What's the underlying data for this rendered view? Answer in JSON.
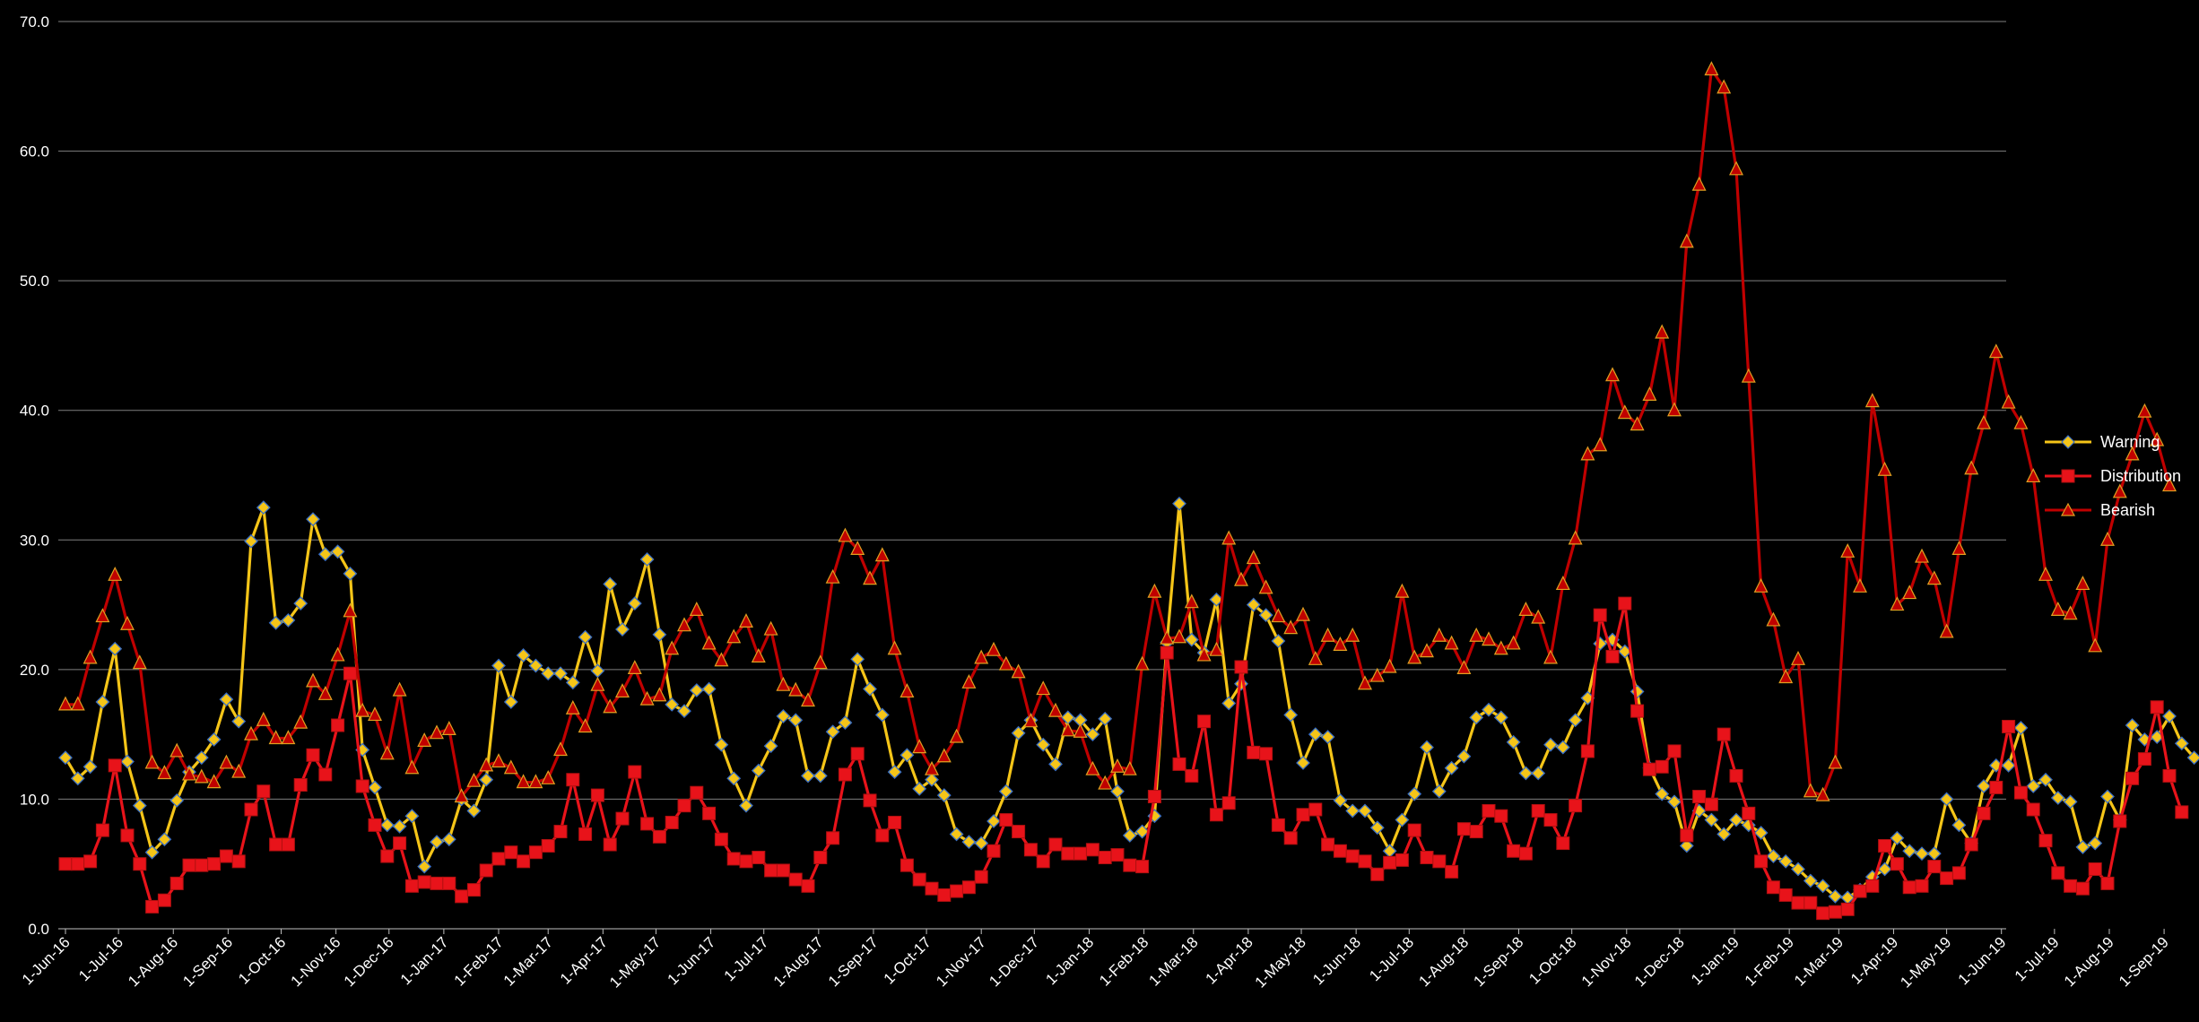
{
  "chart_data": {
    "type": "line",
    "title": "",
    "xlabel": "",
    "ylabel": "",
    "ylim": [
      0,
      70
    ],
    "y_ticks": [
      "0.0",
      "10.0",
      "20.0",
      "30.0",
      "40.0",
      "50.0",
      "60.0",
      "70.0"
    ],
    "grid": true,
    "legend_position": "right",
    "x_tick_labels": [
      "1-Jun-16",
      "1-Jul-16",
      "1-Aug-16",
      "1-Sep-16",
      "1-Oct-16",
      "1-Nov-16",
      "1-Dec-16",
      "1-Jan-17",
      "1-Feb-17",
      "1-Mar-17",
      "1-Apr-17",
      "1-May-17",
      "1-Jun-17",
      "1-Jul-17",
      "1-Aug-17",
      "1-Sep-17",
      "1-Oct-17",
      "1-Nov-17",
      "1-Dec-17",
      "1-Jan-18",
      "1-Feb-18",
      "1-Mar-18",
      "1-Apr-18",
      "1-May-18",
      "1-Jun-18",
      "1-Jul-18",
      "1-Aug-18",
      "1-Sep-18",
      "1-Oct-18",
      "1-Nov-18",
      "1-Dec-18",
      "1-Jan-19",
      "1-Feb-19",
      "1-Mar-19",
      "1-Apr-19",
      "1-May-19",
      "1-Jun-19",
      "1-Jul-19",
      "1-Aug-19",
      "1-Sep-19"
    ],
    "x_start": "2016-06-01",
    "x_step": "weekly",
    "series": [
      {
        "name": "Warning",
        "color": "#F5C518",
        "marker": "diamond",
        "values": [
          13.2,
          11.6,
          12.5,
          17.5,
          21.6,
          12.9,
          9.5,
          5.9,
          6.9,
          9.9,
          12.1,
          13.2,
          14.6,
          17.7,
          16.0,
          29.9,
          32.5,
          23.6,
          23.8,
          25.1,
          31.6,
          28.9,
          29.1,
          27.4,
          13.8,
          10.9,
          8.0,
          7.9,
          8.7,
          4.8,
          6.7,
          6.9,
          10.0,
          9.1,
          11.5,
          20.3,
          17.5,
          21.1,
          20.3,
          19.7,
          19.7,
          19.0,
          22.5,
          19.9,
          26.6,
          23.1,
          25.1,
          28.5,
          22.7,
          17.3,
          16.8,
          18.4,
          18.5,
          14.2,
          11.6,
          9.5,
          12.2,
          14.1,
          16.4,
          16.1,
          11.8,
          11.8,
          15.2,
          15.9,
          20.8,
          18.5,
          16.5,
          12.1,
          13.4,
          10.8,
          11.5,
          10.3,
          7.3,
          6.7,
          6.6,
          8.3,
          10.6,
          15.1,
          16.1,
          14.2,
          12.7,
          16.3,
          16.1,
          15.0,
          16.2,
          10.6,
          7.2,
          7.5,
          8.7,
          22.1,
          32.8,
          22.3,
          21.3,
          25.4,
          17.4,
          18.9,
          25.0,
          24.2,
          22.2,
          16.5,
          12.8,
          15.0,
          14.8,
          9.9,
          9.1,
          9.1,
          7.8,
          6.0,
          8.4,
          10.4,
          14.0,
          10.6,
          12.4,
          13.3,
          16.3,
          16.9,
          16.3,
          14.4,
          12.0,
          12.0,
          14.2,
          14.0,
          16.1,
          17.8,
          22.0,
          22.3,
          21.4,
          18.3,
          12.4,
          10.4,
          9.8,
          6.4,
          9.1,
          8.4,
          7.3,
          8.4,
          8.0,
          7.4,
          5.6,
          5.2,
          4.6,
          3.7,
          3.3,
          2.5,
          2.4,
          3.0,
          4.0,
          4.6,
          7.0,
          6.0,
          5.8,
          5.8,
          10.0,
          8.0,
          6.6,
          11.0,
          12.6,
          12.6,
          15.5,
          11.0,
          11.5,
          10.1,
          9.8,
          6.3,
          6.6,
          10.2,
          8.4,
          15.7,
          14.6,
          14.8,
          16.4,
          14.3,
          13.2
        ]
      },
      {
        "name": "Distribution",
        "color": "#E8131A",
        "marker": "square",
        "values": [
          5.0,
          5.0,
          5.2,
          7.6,
          12.6,
          7.2,
          5.0,
          1.7,
          2.2,
          3.5,
          4.9,
          4.9,
          5.0,
          5.6,
          5.2,
          9.2,
          10.6,
          6.5,
          6.5,
          11.1,
          13.4,
          11.9,
          15.7,
          19.7,
          11.0,
          8.0,
          5.6,
          6.6,
          3.3,
          3.6,
          3.5,
          3.5,
          2.5,
          3.0,
          4.5,
          5.4,
          5.9,
          5.2,
          5.9,
          6.4,
          7.5,
          11.5,
          7.3,
          10.3,
          6.5,
          8.5,
          12.1,
          8.1,
          7.1,
          8.2,
          9.5,
          10.5,
          8.9,
          6.9,
          5.4,
          5.2,
          5.5,
          4.5,
          4.5,
          3.8,
          3.3,
          5.5,
          7.0,
          11.9,
          13.5,
          9.9,
          7.2,
          8.2,
          4.9,
          3.8,
          3.1,
          2.6,
          2.9,
          3.2,
          4.0,
          6.0,
          8.4,
          7.5,
          6.1,
          5.2,
          6.5,
          5.8,
          5.8,
          6.1,
          5.5,
          5.7,
          4.9,
          4.8,
          10.2,
          21.3,
          12.7,
          11.8,
          16.0,
          8.8,
          9.7,
          20.2,
          13.6,
          13.5,
          8.0,
          7.0,
          8.8,
          9.2,
          6.5,
          6.0,
          5.6,
          5.2,
          4.2,
          5.1,
          5.3,
          7.6,
          5.5,
          5.2,
          4.4,
          7.7,
          7.5,
          9.1,
          8.7,
          6.0,
          5.8,
          9.1,
          8.4,
          6.6,
          9.5,
          13.7,
          24.2,
          21.0,
          25.1,
          16.8,
          12.3,
          12.5,
          13.7,
          7.2,
          10.2,
          9.6,
          15.0,
          11.8,
          8.9,
          5.2,
          3.2,
          2.6,
          2.0,
          2.0,
          1.2,
          1.3,
          1.5,
          2.9,
          3.3,
          6.4,
          5.0,
          3.2,
          3.3,
          4.8,
          3.9,
          4.3,
          6.5,
          8.9,
          10.9,
          15.6,
          10.5,
          9.2,
          6.8,
          4.3,
          3.3,
          3.1,
          4.6,
          3.5,
          8.3,
          11.6,
          13.1,
          17.1,
          11.8,
          9.0
        ]
      },
      {
        "name": "Bearish",
        "color": "#C00000",
        "marker": "triangle",
        "values": [
          17.3,
          17.3,
          20.9,
          24.1,
          27.3,
          23.5,
          20.5,
          12.8,
          12.0,
          13.7,
          11.9,
          11.7,
          11.3,
          12.8,
          12.1,
          15.0,
          16.1,
          14.7,
          14.7,
          15.9,
          19.1,
          18.1,
          21.1,
          24.5,
          16.8,
          16.5,
          13.5,
          18.4,
          12.4,
          14.5,
          15.1,
          15.4,
          10.2,
          11.4,
          12.6,
          12.9,
          12.4,
          11.3,
          11.3,
          11.6,
          13.8,
          17.0,
          15.6,
          18.8,
          17.1,
          18.3,
          20.1,
          17.7,
          18.0,
          21.6,
          23.4,
          24.6,
          22.0,
          20.7,
          22.5,
          23.7,
          21.0,
          23.1,
          18.8,
          18.4,
          17.6,
          20.5,
          27.1,
          30.3,
          29.3,
          27.0,
          28.8,
          21.6,
          18.3,
          14.0,
          12.3,
          13.3,
          14.8,
          19.0,
          20.9,
          21.5,
          20.4,
          19.8,
          16.0,
          18.5,
          16.8,
          15.3,
          15.2,
          12.3,
          11.2,
          12.5,
          12.3,
          20.4,
          26.0,
          22.4,
          22.5,
          25.2,
          21.1,
          21.5,
          30.1,
          26.9,
          28.6,
          26.3,
          24.1,
          23.2,
          24.2,
          20.8,
          22.6,
          21.9,
          22.6,
          18.9,
          19.5,
          20.2,
          26.0,
          20.9,
          21.4,
          22.6,
          22.0,
          20.1,
          22.6,
          22.3,
          21.6,
          22.0,
          24.6,
          24.0,
          20.9,
          26.6,
          30.1,
          36.6,
          37.3,
          42.7,
          39.8,
          38.9,
          41.2,
          46.0,
          40.0,
          53.0,
          57.4,
          66.3,
          64.9,
          58.6,
          42.6,
          26.4,
          23.8,
          19.4,
          20.8,
          10.6,
          10.3,
          12.8,
          29.1,
          26.4,
          40.7,
          35.4,
          25.0,
          25.9,
          28.7,
          27.0,
          22.9,
          29.3,
          35.5,
          39.0,
          44.5,
          40.6,
          39.0,
          34.9,
          27.3,
          24.6,
          24.3,
          26.6,
          21.8,
          30.0,
          33.7,
          36.6,
          39.9,
          37.7,
          34.2
        ]
      }
    ]
  }
}
